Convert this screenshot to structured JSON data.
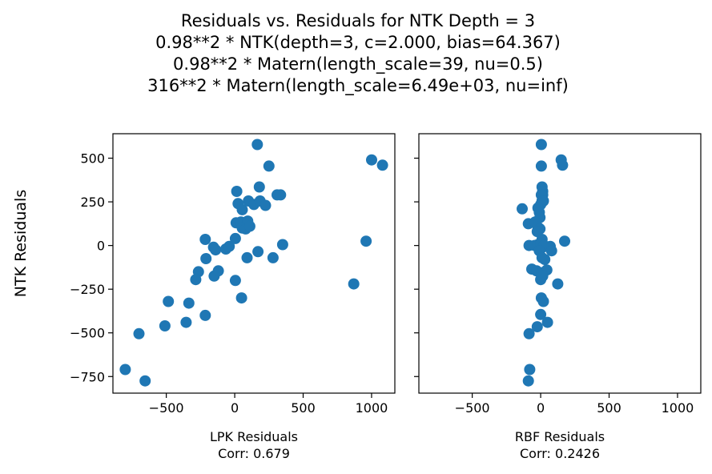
{
  "figure": {
    "title_lines": [
      "Residuals vs. Residuals for NTK Depth = 3",
      "0.98**2 * NTK(depth=3, c=2.000, bias=64.367)",
      "0.98**2 * Matern(length_scale=39, nu=0.5)",
      "316**2 * Matern(length_scale=6.49e+03, nu=inf)"
    ],
    "shared_ylabel": "NTK Residuals",
    "marker_color": "#1f77b4"
  },
  "chart_data": [
    {
      "type": "scatter",
      "xlabel": "LPK Residuals",
      "subtitle": "Corr: 0.679",
      "xlim": [
        -890,
        1170
      ],
      "ylim": [
        -845,
        640
      ],
      "xticks": [
        -500,
        0,
        500,
        1000
      ],
      "yticks": [
        500,
        250,
        0,
        -250,
        -500,
        -750
      ],
      "xtick_labels": [
        "−500",
        "0",
        "500",
        "1000"
      ],
      "ytick_labels": [
        "500",
        "250",
        "0",
        "−250",
        "−500",
        "−750"
      ],
      "points": [
        [
          165,
          578
        ],
        [
          250,
          455
        ],
        [
          1000,
          490
        ],
        [
          1080,
          460
        ],
        [
          15,
          310
        ],
        [
          180,
          335
        ],
        [
          310,
          290
        ],
        [
          335,
          290
        ],
        [
          100,
          255
        ],
        [
          140,
          235
        ],
        [
          185,
          255
        ],
        [
          225,
          230
        ],
        [
          25,
          240
        ],
        [
          55,
          205
        ],
        [
          10,
          130
        ],
        [
          45,
          135
        ],
        [
          95,
          140
        ],
        [
          55,
          100
        ],
        [
          80,
          95
        ],
        [
          110,
          110
        ],
        [
          960,
          25
        ],
        [
          350,
          5
        ],
        [
          280,
          -70
        ],
        [
          170,
          -35
        ],
        [
          90,
          -70
        ],
        [
          -215,
          35
        ],
        [
          -155,
          -10
        ],
        [
          -140,
          -25
        ],
        [
          -210,
          -75
        ],
        [
          -65,
          -20
        ],
        [
          -40,
          -5
        ],
        [
          5,
          40
        ],
        [
          -265,
          -150
        ],
        [
          -285,
          -195
        ],
        [
          -150,
          -175
        ],
        [
          -120,
          -145
        ],
        [
          5,
          -200
        ],
        [
          870,
          -220
        ],
        [
          50,
          -300
        ],
        [
          -485,
          -320
        ],
        [
          -335,
          -330
        ],
        [
          -215,
          -400
        ],
        [
          -355,
          -440
        ],
        [
          -510,
          -460
        ],
        [
          -700,
          -505
        ],
        [
          -800,
          -710
        ],
        [
          -655,
          -775
        ]
      ]
    },
    {
      "type": "scatter",
      "xlabel": "RBF Residuals",
      "subtitle": "Corr: 0.2426",
      "xlim": [
        -890,
        1170
      ],
      "ylim": [
        -845,
        640
      ],
      "xticks": [
        -500,
        0,
        500,
        1000
      ],
      "yticks": [
        500,
        250,
        0,
        -250,
        -500,
        -750
      ],
      "xtick_labels": [
        "−500",
        "0",
        "500",
        "1000"
      ],
      "ytick_labels": [
        "",
        "",
        "",
        "",
        "",
        ""
      ],
      "points": [
        [
          5,
          578
        ],
        [
          150,
          490
        ],
        [
          160,
          460
        ],
        [
          5,
          455
        ],
        [
          10,
          335
        ],
        [
          15,
          310
        ],
        [
          15,
          290
        ],
        [
          5,
          290
        ],
        [
          10,
          255
        ],
        [
          0,
          235
        ],
        [
          20,
          255
        ],
        [
          -135,
          210
        ],
        [
          -20,
          215
        ],
        [
          -10,
          190
        ],
        [
          -5,
          160
        ],
        [
          -90,
          125
        ],
        [
          -40,
          135
        ],
        [
          -20,
          105
        ],
        [
          -5,
          95
        ],
        [
          -25,
          80
        ],
        [
          175,
          25
        ],
        [
          10,
          35
        ],
        [
          -10,
          5
        ],
        [
          -85,
          0
        ],
        [
          -45,
          0
        ],
        [
          -20,
          5
        ],
        [
          0,
          10
        ],
        [
          15,
          -10
        ],
        [
          25,
          0
        ],
        [
          70,
          -5
        ],
        [
          80,
          -30
        ],
        [
          -10,
          -30
        ],
        [
          10,
          -70
        ],
        [
          30,
          -80
        ],
        [
          -65,
          -135
        ],
        [
          -30,
          -145
        ],
        [
          10,
          -155
        ],
        [
          45,
          -140
        ],
        [
          0,
          -195
        ],
        [
          15,
          -175
        ],
        [
          125,
          -220
        ],
        [
          5,
          -300
        ],
        [
          20,
          -320
        ],
        [
          0,
          -395
        ],
        [
          50,
          -440
        ],
        [
          -25,
          -465
        ],
        [
          -85,
          -505
        ],
        [
          -80,
          -710
        ],
        [
          -90,
          -775
        ]
      ]
    }
  ]
}
